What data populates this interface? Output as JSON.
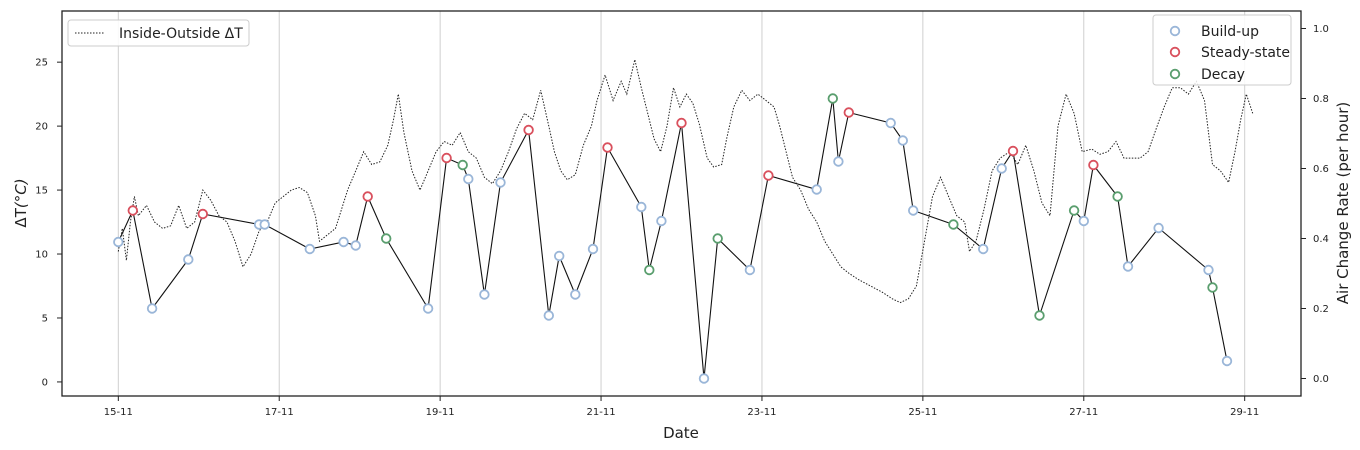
{
  "chart_data": {
    "type": "line",
    "x_axis": {
      "label": "Date",
      "ticks": [
        "15-11",
        "17-11",
        "19-11",
        "21-11",
        "23-11",
        "25-11",
        "27-11",
        "29-11"
      ],
      "tick_day": [
        15,
        17,
        19,
        21,
        23,
        25,
        27,
        29
      ],
      "range": [
        14.3,
        29.7
      ]
    },
    "y_left": {
      "label_main": "ΔT",
      "label_unit": "(°C)",
      "range": [
        -1.1,
        29
      ],
      "ticks": [
        0,
        5,
        10,
        15,
        20,
        25
      ]
    },
    "y_right": {
      "label": "Air Change Rate (per hour)",
      "range": [
        -0.05,
        1.05
      ],
      "ticks": [
        "0.0",
        "0.2",
        "0.4",
        "0.6",
        "0.8",
        "1.0"
      ],
      "tick_values": [
        0,
        0.2,
        0.4,
        0.6,
        0.8,
        1.0
      ]
    },
    "grid": "vertical gridlines at x ticks",
    "legend_left": {
      "position": "top-left",
      "entries": [
        {
          "label": "Inside-Outside ΔT",
          "style": "dotted-line",
          "color": "#222222"
        }
      ]
    },
    "legend_right": {
      "position": "top-right",
      "entries": [
        {
          "label": "Build-up",
          "color": "#9ab6d8"
        },
        {
          "label": "Steady-state",
          "color": "#d9505d"
        },
        {
          "label": "Decay",
          "color": "#5a9e6e"
        }
      ]
    },
    "series": [
      {
        "name": "Inside-Outside ΔT",
        "axis": "left",
        "style": "dotted",
        "color": "#222222",
        "points": [
          [
            15.0,
            10.2
          ],
          [
            15.05,
            12.0
          ],
          [
            15.1,
            9.5
          ],
          [
            15.15,
            12.5
          ],
          [
            15.2,
            14.5
          ],
          [
            15.25,
            13.0
          ],
          [
            15.35,
            13.8
          ],
          [
            15.45,
            12.5
          ],
          [
            15.55,
            12.0
          ],
          [
            15.65,
            12.2
          ],
          [
            15.75,
            13.8
          ],
          [
            15.85,
            12.0
          ],
          [
            15.95,
            12.5
          ],
          [
            16.05,
            15.0
          ],
          [
            16.15,
            14.2
          ],
          [
            16.25,
            13.0
          ],
          [
            16.35,
            12.5
          ],
          [
            16.45,
            11.0
          ],
          [
            16.55,
            9.0
          ],
          [
            16.65,
            10.0
          ],
          [
            16.75,
            11.8
          ],
          [
            16.85,
            12.5
          ],
          [
            16.95,
            14.0
          ],
          [
            17.05,
            14.5
          ],
          [
            17.15,
            15.0
          ],
          [
            17.25,
            15.2
          ],
          [
            17.35,
            14.8
          ],
          [
            17.45,
            13.0
          ],
          [
            17.5,
            11.0
          ],
          [
            17.6,
            11.5
          ],
          [
            17.7,
            12.0
          ],
          [
            17.85,
            15.0
          ],
          [
            17.95,
            16.5
          ],
          [
            18.05,
            18.0
          ],
          [
            18.15,
            17.0
          ],
          [
            18.25,
            17.2
          ],
          [
            18.35,
            18.5
          ],
          [
            18.42,
            20.5
          ],
          [
            18.48,
            22.5
          ],
          [
            18.55,
            19.5
          ],
          [
            18.65,
            16.5
          ],
          [
            18.75,
            15.0
          ],
          [
            18.85,
            16.5
          ],
          [
            18.95,
            18.0
          ],
          [
            19.05,
            18.8
          ],
          [
            19.15,
            18.5
          ],
          [
            19.25,
            19.5
          ],
          [
            19.35,
            18.0
          ],
          [
            19.45,
            17.5
          ],
          [
            19.55,
            16.0
          ],
          [
            19.65,
            15.5
          ],
          [
            19.75,
            16.5
          ],
          [
            19.85,
            18.0
          ],
          [
            19.95,
            19.8
          ],
          [
            20.05,
            21.0
          ],
          [
            20.15,
            20.5
          ],
          [
            20.25,
            22.8
          ],
          [
            20.35,
            20.0
          ],
          [
            20.42,
            18.0
          ],
          [
            20.5,
            16.5
          ],
          [
            20.58,
            15.8
          ],
          [
            20.68,
            16.2
          ],
          [
            20.78,
            18.5
          ],
          [
            20.88,
            20.0
          ],
          [
            20.95,
            22.0
          ],
          [
            21.05,
            24.0
          ],
          [
            21.15,
            22.0
          ],
          [
            21.25,
            23.5
          ],
          [
            21.32,
            22.5
          ],
          [
            21.42,
            25.2
          ],
          [
            21.5,
            23.0
          ],
          [
            21.58,
            21.0
          ],
          [
            21.66,
            19.0
          ],
          [
            21.74,
            18.0
          ],
          [
            21.82,
            20.0
          ],
          [
            21.9,
            23.0
          ],
          [
            21.98,
            21.5
          ],
          [
            22.06,
            22.5
          ],
          [
            22.14,
            21.8
          ],
          [
            22.22,
            20.2
          ],
          [
            22.32,
            17.5
          ],
          [
            22.4,
            16.8
          ],
          [
            22.5,
            17.0
          ],
          [
            22.56,
            19.0
          ],
          [
            22.65,
            21.5
          ],
          [
            22.75,
            22.8
          ],
          [
            22.85,
            22.0
          ],
          [
            22.95,
            22.5
          ],
          [
            23.05,
            22.0
          ],
          [
            23.15,
            21.5
          ],
          [
            23.22,
            20.0
          ],
          [
            23.3,
            18.0
          ],
          [
            23.38,
            16.0
          ],
          [
            23.48,
            15.0
          ],
          [
            23.58,
            13.5
          ],
          [
            23.68,
            12.5
          ],
          [
            23.78,
            11.0
          ],
          [
            23.88,
            10.0
          ],
          [
            23.98,
            9.0
          ],
          [
            24.08,
            8.5
          ],
          [
            24.2,
            8.0
          ],
          [
            24.35,
            7.5
          ],
          [
            24.5,
            7.0
          ],
          [
            24.62,
            6.5
          ],
          [
            24.72,
            6.2
          ],
          [
            24.82,
            6.5
          ],
          [
            24.92,
            7.5
          ],
          [
            25.02,
            11.0
          ],
          [
            25.12,
            14.5
          ],
          [
            25.22,
            16.0
          ],
          [
            25.32,
            14.5
          ],
          [
            25.42,
            13.0
          ],
          [
            25.52,
            12.5
          ],
          [
            25.58,
            10.2
          ],
          [
            25.66,
            11.0
          ],
          [
            25.76,
            13.5
          ],
          [
            25.86,
            16.5
          ],
          [
            25.96,
            17.5
          ],
          [
            26.08,
            18.0
          ],
          [
            26.18,
            17.0
          ],
          [
            26.28,
            18.5
          ],
          [
            26.38,
            16.5
          ],
          [
            26.48,
            14.0
          ],
          [
            26.58,
            13.0
          ],
          [
            26.68,
            20.0
          ],
          [
            26.78,
            22.5
          ],
          [
            26.88,
            21.0
          ],
          [
            26.98,
            18.0
          ],
          [
            27.1,
            18.2
          ],
          [
            27.2,
            17.8
          ],
          [
            27.3,
            18.0
          ],
          [
            27.4,
            18.8
          ],
          [
            27.5,
            17.5
          ],
          [
            27.6,
            17.5
          ],
          [
            27.7,
            17.5
          ],
          [
            27.8,
            18.0
          ],
          [
            27.9,
            19.8
          ],
          [
            28.0,
            21.5
          ],
          [
            28.1,
            23.0
          ],
          [
            28.2,
            23.0
          ],
          [
            28.3,
            22.5
          ],
          [
            28.4,
            23.5
          ],
          [
            28.5,
            22.0
          ],
          [
            28.6,
            17.0
          ],
          [
            28.7,
            16.5
          ],
          [
            28.8,
            15.6
          ],
          [
            28.88,
            18.0
          ],
          [
            28.95,
            20.5
          ],
          [
            29.02,
            22.5
          ],
          [
            29.1,
            21.0
          ]
        ]
      },
      {
        "name": "Air change rate",
        "axis": "right",
        "style": "solid",
        "color": "#111111",
        "points": [
          [
            15.0,
            0.39
          ],
          [
            15.18,
            0.48
          ],
          [
            15.42,
            0.2
          ],
          [
            15.87,
            0.34
          ],
          [
            16.05,
            0.47
          ],
          [
            16.75,
            0.44
          ],
          [
            16.82,
            0.44
          ],
          [
            17.38,
            0.37
          ],
          [
            17.8,
            0.39
          ],
          [
            17.95,
            0.38
          ],
          [
            18.1,
            0.52
          ],
          [
            18.33,
            0.4
          ],
          [
            18.85,
            0.2
          ],
          [
            19.08,
            0.63
          ],
          [
            19.28,
            0.61
          ],
          [
            19.35,
            0.57
          ],
          [
            19.55,
            0.24
          ],
          [
            19.75,
            0.56
          ],
          [
            20.1,
            0.71
          ],
          [
            20.35,
            0.18
          ],
          [
            20.48,
            0.35
          ],
          [
            20.68,
            0.24
          ],
          [
            20.9,
            0.37
          ],
          [
            21.08,
            0.66
          ],
          [
            21.5,
            0.49
          ],
          [
            21.6,
            0.31
          ],
          [
            21.75,
            0.45
          ],
          [
            22.0,
            0.73
          ],
          [
            22.28,
            0.0
          ],
          [
            22.45,
            0.4
          ],
          [
            22.85,
            0.31
          ],
          [
            23.08,
            0.58
          ],
          [
            23.68,
            0.54
          ],
          [
            23.88,
            0.8
          ],
          [
            23.95,
            0.62
          ],
          [
            24.08,
            0.76
          ],
          [
            24.6,
            0.73
          ],
          [
            24.75,
            0.68
          ],
          [
            24.88,
            0.48
          ],
          [
            25.38,
            0.44
          ],
          [
            25.75,
            0.37
          ],
          [
            25.98,
            0.6
          ],
          [
            26.12,
            0.65
          ],
          [
            26.45,
            0.18
          ],
          [
            26.88,
            0.48
          ],
          [
            27.0,
            0.45
          ],
          [
            27.12,
            0.61
          ],
          [
            27.42,
            0.52
          ],
          [
            27.55,
            0.32
          ],
          [
            27.93,
            0.43
          ],
          [
            28.55,
            0.31
          ],
          [
            28.6,
            0.26
          ],
          [
            28.78,
            0.05
          ]
        ]
      }
    ],
    "phases": [
      {
        "x": 15.0,
        "y": 0.39,
        "phase": "Build-up"
      },
      {
        "x": 15.18,
        "y": 0.48,
        "phase": "Steady-state"
      },
      {
        "x": 15.42,
        "y": 0.2,
        "phase": "Build-up"
      },
      {
        "x": 15.87,
        "y": 0.34,
        "phase": "Build-up"
      },
      {
        "x": 16.05,
        "y": 0.47,
        "phase": "Steady-state"
      },
      {
        "x": 16.75,
        "y": 0.44,
        "phase": "Build-up"
      },
      {
        "x": 16.82,
        "y": 0.44,
        "phase": "Build-up"
      },
      {
        "x": 17.38,
        "y": 0.37,
        "phase": "Build-up"
      },
      {
        "x": 17.8,
        "y": 0.39,
        "phase": "Build-up"
      },
      {
        "x": 17.95,
        "y": 0.38,
        "phase": "Build-up"
      },
      {
        "x": 18.1,
        "y": 0.52,
        "phase": "Steady-state"
      },
      {
        "x": 18.33,
        "y": 0.4,
        "phase": "Decay"
      },
      {
        "x": 18.85,
        "y": 0.2,
        "phase": "Build-up"
      },
      {
        "x": 19.08,
        "y": 0.63,
        "phase": "Steady-state"
      },
      {
        "x": 19.28,
        "y": 0.61,
        "phase": "Decay"
      },
      {
        "x": 19.35,
        "y": 0.57,
        "phase": "Build-up"
      },
      {
        "x": 19.55,
        "y": 0.24,
        "phase": "Build-up"
      },
      {
        "x": 19.75,
        "y": 0.56,
        "phase": "Build-up"
      },
      {
        "x": 20.1,
        "y": 0.71,
        "phase": "Steady-state"
      },
      {
        "x": 20.35,
        "y": 0.18,
        "phase": "Build-up"
      },
      {
        "x": 20.48,
        "y": 0.35,
        "phase": "Build-up"
      },
      {
        "x": 20.68,
        "y": 0.24,
        "phase": "Build-up"
      },
      {
        "x": 20.9,
        "y": 0.37,
        "phase": "Build-up"
      },
      {
        "x": 21.08,
        "y": 0.66,
        "phase": "Steady-state"
      },
      {
        "x": 21.5,
        "y": 0.49,
        "phase": "Build-up"
      },
      {
        "x": 21.6,
        "y": 0.31,
        "phase": "Decay"
      },
      {
        "x": 21.75,
        "y": 0.45,
        "phase": "Build-up"
      },
      {
        "x": 22.0,
        "y": 0.73,
        "phase": "Steady-state"
      },
      {
        "x": 22.28,
        "y": 0.0,
        "phase": "Build-up"
      },
      {
        "x": 22.45,
        "y": 0.4,
        "phase": "Decay"
      },
      {
        "x": 22.85,
        "y": 0.31,
        "phase": "Build-up"
      },
      {
        "x": 23.08,
        "y": 0.58,
        "phase": "Steady-state"
      },
      {
        "x": 23.68,
        "y": 0.54,
        "phase": "Build-up"
      },
      {
        "x": 23.88,
        "y": 0.8,
        "phase": "Decay"
      },
      {
        "x": 23.95,
        "y": 0.62,
        "phase": "Build-up"
      },
      {
        "x": 24.08,
        "y": 0.76,
        "phase": "Steady-state"
      },
      {
        "x": 24.6,
        "y": 0.73,
        "phase": "Build-up"
      },
      {
        "x": 24.75,
        "y": 0.68,
        "phase": "Build-up"
      },
      {
        "x": 24.88,
        "y": 0.48,
        "phase": "Build-up"
      },
      {
        "x": 25.38,
        "y": 0.44,
        "phase": "Decay"
      },
      {
        "x": 25.75,
        "y": 0.37,
        "phase": "Build-up"
      },
      {
        "x": 25.98,
        "y": 0.6,
        "phase": "Build-up"
      },
      {
        "x": 26.12,
        "y": 0.65,
        "phase": "Steady-state"
      },
      {
        "x": 26.45,
        "y": 0.18,
        "phase": "Decay"
      },
      {
        "x": 26.88,
        "y": 0.48,
        "phase": "Decay"
      },
      {
        "x": 27.0,
        "y": 0.45,
        "phase": "Build-up"
      },
      {
        "x": 27.12,
        "y": 0.61,
        "phase": "Steady-state"
      },
      {
        "x": 27.42,
        "y": 0.52,
        "phase": "Decay"
      },
      {
        "x": 27.55,
        "y": 0.32,
        "phase": "Build-up"
      },
      {
        "x": 27.93,
        "y": 0.43,
        "phase": "Build-up"
      },
      {
        "x": 28.55,
        "y": 0.31,
        "phase": "Build-up"
      },
      {
        "x": 28.6,
        "y": 0.26,
        "phase": "Decay"
      },
      {
        "x": 28.78,
        "y": 0.05,
        "phase": "Build-up"
      }
    ]
  }
}
